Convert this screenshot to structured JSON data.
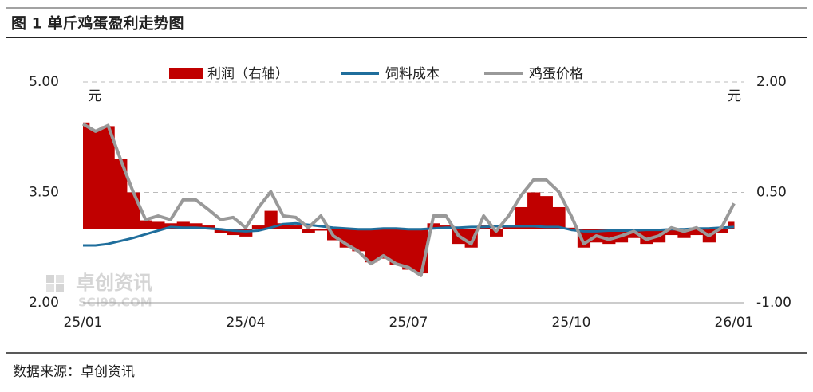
{
  "header": {
    "title": "图 1  单斤鸡蛋盈利走势图"
  },
  "chart_data": {
    "type": "combo",
    "categories": [
      "25/01",
      null,
      null,
      null,
      null,
      null,
      null,
      null,
      null,
      null,
      null,
      null,
      null,
      "25/04",
      null,
      null,
      null,
      null,
      null,
      null,
      null,
      null,
      null,
      null,
      null,
      null,
      "25/07",
      null,
      null,
      null,
      null,
      null,
      null,
      null,
      null,
      null,
      null,
      null,
      null,
      "25/10",
      null,
      null,
      null,
      null,
      null,
      null,
      null,
      null,
      null,
      null,
      null,
      null,
      "26/01"
    ],
    "series": [
      {
        "name": "利润（右轴）",
        "type": "bar",
        "axis": "y2",
        "color": "#c00000",
        "values": [
          1.45,
          1.35,
          1.4,
          0.95,
          0.5,
          0.12,
          0.1,
          0.08,
          0.1,
          0.08,
          0.05,
          -0.05,
          -0.08,
          -0.1,
          0.05,
          0.25,
          0.08,
          0.05,
          -0.05,
          -0.02,
          -0.15,
          -0.25,
          -0.3,
          -0.45,
          -0.4,
          -0.48,
          -0.55,
          -0.6,
          0.08,
          0.05,
          -0.2,
          -0.25,
          0.05,
          -0.1,
          0.03,
          0.3,
          0.5,
          0.45,
          0.3,
          0.02,
          -0.25,
          -0.18,
          -0.2,
          -0.18,
          -0.12,
          -0.2,
          -0.18,
          -0.08,
          -0.12,
          -0.08,
          -0.18,
          -0.05,
          0.1
        ]
      },
      {
        "name": "饲料成本",
        "type": "line",
        "color": "#1f6e9c",
        "values": [
          2.78,
          2.78,
          2.8,
          2.84,
          2.88,
          2.93,
          2.98,
          3.03,
          3.02,
          3.02,
          3.01,
          3.0,
          2.98,
          2.97,
          2.98,
          3.02,
          3.07,
          3.08,
          3.06,
          3.04,
          3.02,
          3.01,
          3.0,
          3.0,
          3.01,
          3.01,
          3.0,
          3.0,
          3.01,
          3.02,
          3.02,
          3.03,
          3.03,
          3.04,
          3.04,
          3.04,
          3.04,
          3.03,
          3.03,
          2.99,
          2.97,
          2.97,
          2.98,
          2.98,
          2.98,
          2.99,
          2.99,
          3.0,
          3.0,
          3.01,
          3.01,
          3.02,
          3.03
        ]
      },
      {
        "name": "鸡蛋价格",
        "type": "line",
        "color": "#999999",
        "values": [
          4.43,
          4.33,
          4.41,
          3.95,
          3.51,
          3.13,
          3.18,
          3.13,
          3.4,
          3.4,
          3.27,
          3.13,
          3.16,
          3.02,
          3.29,
          3.51,
          3.18,
          3.16,
          3.02,
          3.18,
          2.91,
          2.8,
          2.7,
          2.53,
          2.64,
          2.53,
          2.48,
          2.37,
          3.18,
          3.18,
          2.91,
          2.8,
          3.18,
          2.97,
          3.18,
          3.46,
          3.67,
          3.67,
          3.51,
          3.18,
          2.8,
          2.91,
          2.86,
          2.91,
          2.97,
          2.86,
          2.91,
          3.02,
          2.97,
          3.02,
          2.91,
          3.02,
          3.35
        ]
      }
    ],
    "ylim": [
      2,
      5
    ],
    "yticks": [
      {
        "value": 2,
        "label": "2.00"
      },
      {
        "value": 3.5,
        "label": "3.50"
      },
      {
        "value": 5,
        "label": "5.00"
      }
    ],
    "y2lim": [
      -1,
      2
    ],
    "y2ticks": [
      {
        "value": -1,
        "label": "-1.00"
      },
      {
        "value": 0.5,
        "label": "0.50"
      },
      {
        "value": 2,
        "label": "2.00"
      }
    ],
    "ylabel": "元",
    "y2label": "元",
    "grid": true,
    "legend": "top",
    "watermark": {
      "text": "卓创资讯",
      "url": "SCI99.COM"
    }
  },
  "footer": {
    "source": "数据来源：卓创资讯"
  }
}
